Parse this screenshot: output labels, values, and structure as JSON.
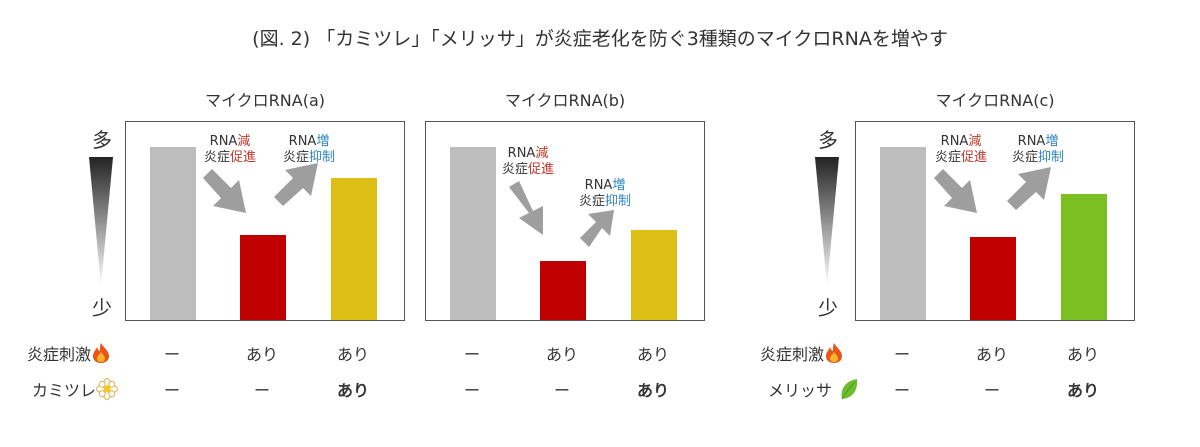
{
  "title": "(図. 2) 「カミツレ」「メリッサ」が炎症老化を防ぐ3種類のマイクロRNAを増やす",
  "scale": {
    "high": "多",
    "low": "少"
  },
  "annotations": {
    "down": {
      "line1_a": "RNA",
      "line1_b": "減",
      "line2_a": "炎症",
      "line2_b": "促進"
    },
    "up": {
      "line1_a": "RNA",
      "line1_b": "増",
      "line2_a": "炎症",
      "line2_b": "抑制"
    }
  },
  "colors": {
    "control": "#bdbdbd",
    "stimulus": "#c00000",
    "chamomile": "#dcbe14",
    "melissa": "#7cbf23",
    "arrow": "#9e9e9e"
  },
  "rows": {
    "stimulus_label": "炎症刺激",
    "chamomile_label": "カミツレ",
    "melissa_label": "メリッサ"
  },
  "cells": {
    "none": "ー",
    "yes": "あり"
  },
  "chart_data": [
    {
      "type": "bar",
      "title": "マイクロRNA(a)",
      "categories": [
        "ー/ー",
        "あり/ー",
        "あり/あり"
      ],
      "values": [
        100,
        49,
        82
      ],
      "ylim": [
        0,
        114
      ],
      "rows": [
        [
          "ー",
          "あり",
          "あり"
        ],
        [
          "ー",
          "ー",
          "あり"
        ]
      ]
    },
    {
      "type": "bar",
      "title": "マイクロRNA(b)",
      "categories": [
        "ー/ー",
        "あり/ー",
        "あり/あり"
      ],
      "values": [
        100,
        34,
        52
      ],
      "ylim": [
        0,
        114
      ],
      "rows": [
        [
          "ー",
          "あり",
          "あり"
        ],
        [
          "ー",
          "ー",
          "あり"
        ]
      ]
    },
    {
      "type": "bar",
      "title": "マイクロRNA(c)",
      "categories": [
        "ー/ー",
        "あり/ー",
        "あり/あり"
      ],
      "values": [
        100,
        48,
        73
      ],
      "ylim": [
        0,
        114
      ],
      "rows": [
        [
          "ー",
          "あり",
          "あり"
        ],
        [
          "ー",
          "ー",
          "あり"
        ]
      ]
    }
  ]
}
